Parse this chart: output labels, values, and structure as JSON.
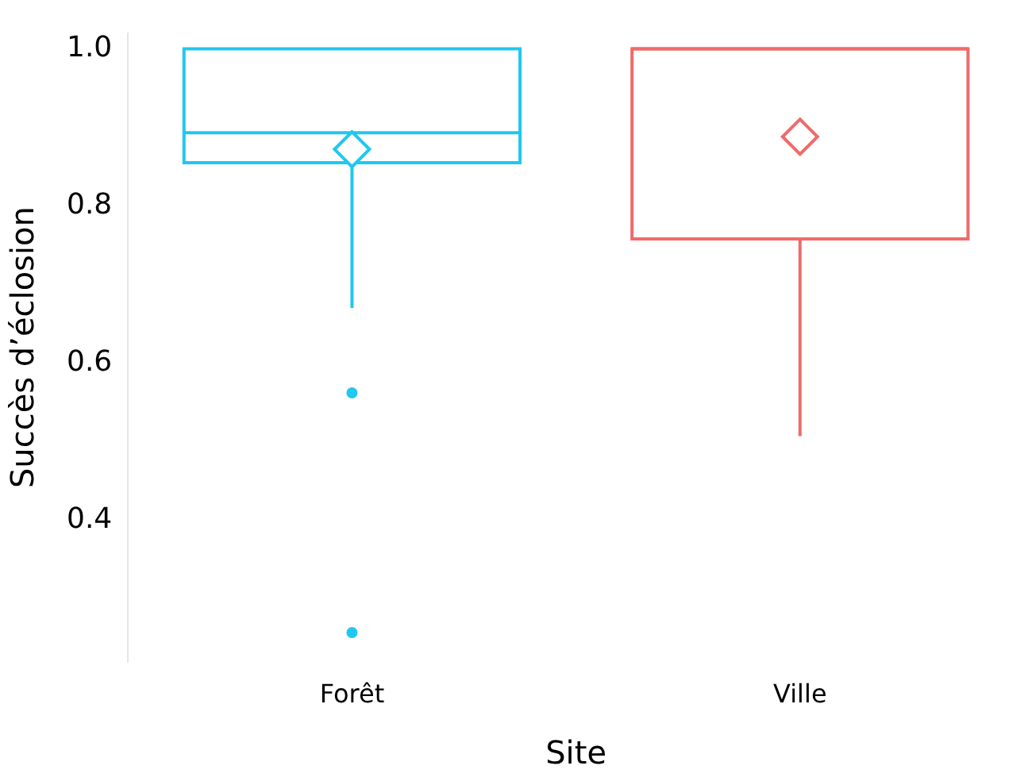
{
  "chart_data": {
    "type": "box",
    "xlabel": "Site",
    "ylabel": "Succès d’éclosion",
    "categories": [
      "Forêt",
      "Ville"
    ],
    "colors": [
      "#1ec8f0",
      "#f06a6a"
    ],
    "boxes": [
      {
        "low": 0.67,
        "q1": 0.855,
        "median": 0.893,
        "q3": 1.0,
        "high": 1.0,
        "mean": 0.872,
        "outliers": [
          0.562,
          0.257
        ]
      },
      {
        "low": 0.507,
        "q1": 0.758,
        "median": 1.0,
        "q3": 1.0,
        "high": 1.0,
        "mean": 0.888
      }
    ],
    "ylim": [
      0.22,
      1.02
    ],
    "yticks": [
      0.4,
      0.6,
      0.8,
      {
        "value": 1,
        "label": "1.0"
      }
    ],
    "grid": false,
    "legend": false
  }
}
